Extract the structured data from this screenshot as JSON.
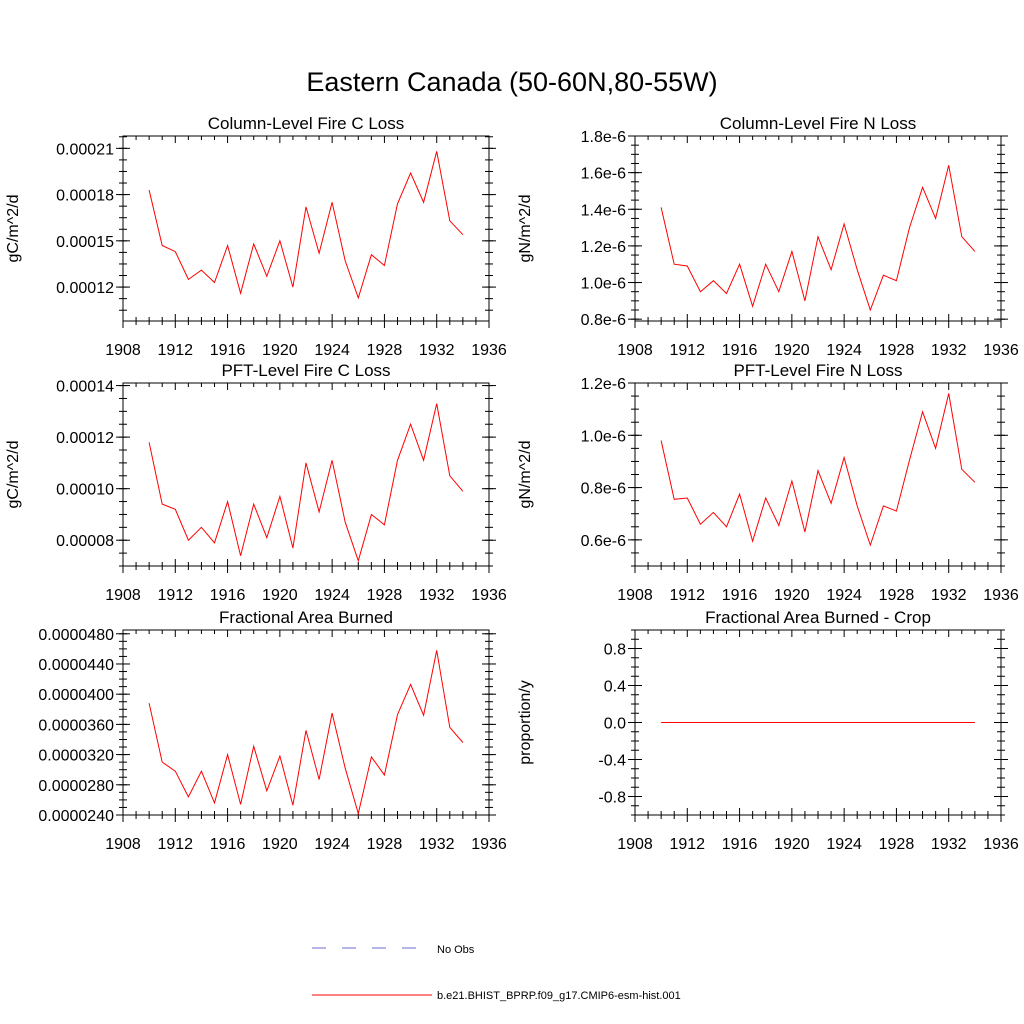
{
  "title": "Eastern Canada (50-60N,80-55W)",
  "legend": {
    "entries": [
      {
        "label": "No Obs",
        "color": "#6b6bd6",
        "style": "dashed"
      },
      {
        "label": "b.e21.BHIST_BPRP.f09_g17.CMIP6-esm-hist.001",
        "color": "#ff0000",
        "style": "solid"
      }
    ]
  },
  "chart_data": [
    {
      "type": "line",
      "title": "Column-Level Fire C Loss",
      "ylabel": "gC/m^2/d",
      "xlim": [
        1908,
        1936
      ],
      "ylim": [
        9.8e-05,
        0.000218
      ],
      "xticks": [
        "1908",
        "1912",
        "1916",
        "1920",
        "1924",
        "1928",
        "1932",
        "1936"
      ],
      "yticks": [
        0.00012,
        0.00015,
        0.00018,
        0.00021
      ],
      "yticklabels": [
        "0.00012",
        "0.00015",
        "0.00018",
        "0.00021"
      ],
      "x": [
        1910,
        1911,
        1912,
        1913,
        1914,
        1915,
        1916,
        1917,
        1918,
        1919,
        1920,
        1921,
        1922,
        1923,
        1924,
        1925,
        1926,
        1927,
        1928,
        1929,
        1930,
        1931,
        1932,
        1933,
        1934
      ],
      "series": [
        {
          "name": "b.e21.BHIST_BPRP.f09_g17.CMIP6-esm-hist.001",
          "color": "#ff0000",
          "values": [
            0.000183,
            0.000147,
            0.000143,
            0.000125,
            0.000131,
            0.000123,
            0.000147,
            0.000116,
            0.000148,
            0.000127,
            0.00015,
            0.00012,
            0.000172,
            0.000142,
            0.000175,
            0.000137,
            0.000113,
            0.000141,
            0.000134,
            0.000174,
            0.000194,
            0.000175,
            0.000208,
            0.000163,
            0.000154
          ]
        }
      ]
    },
    {
      "type": "line",
      "title": "Column-Level Fire N Loss",
      "ylabel": "gN/m^2/d",
      "xlim": [
        1908,
        1936
      ],
      "ylim": [
        7.9e-07,
        1.8e-06
      ],
      "xticks": [
        "1908",
        "1912",
        "1916",
        "1920",
        "1924",
        "1928",
        "1932",
        "1936"
      ],
      "yticks": [
        8e-07,
        1e-06,
        1.2e-06,
        1.4e-06,
        1.6e-06,
        1.8e-06
      ],
      "yticklabels": [
        "0.8e-6",
        "1.0e-6",
        "1.2e-6",
        "1.4e-6",
        "1.6e-6",
        "1.8e-6"
      ],
      "x": [
        1910,
        1911,
        1912,
        1913,
        1914,
        1915,
        1916,
        1917,
        1918,
        1919,
        1920,
        1921,
        1922,
        1923,
        1924,
        1925,
        1926,
        1927,
        1928,
        1929,
        1930,
        1931,
        1932,
        1933,
        1934
      ],
      "series": [
        {
          "name": "b.e21.BHIST_BPRP.f09_g17.CMIP6-esm-hist.001",
          "color": "#ff0000",
          "values": [
            1.41e-06,
            1.1e-06,
            1.09e-06,
            9.5e-07,
            1.01e-06,
            9.4e-07,
            1.1e-06,
            8.7e-07,
            1.1e-06,
            9.5e-07,
            1.17e-06,
            9e-07,
            1.25e-06,
            1.07e-06,
            1.32e-06,
            1.07e-06,
            8.5e-07,
            1.04e-06,
            1.01e-06,
            1.3e-06,
            1.52e-06,
            1.35e-06,
            1.64e-06,
            1.25e-06,
            1.17e-06
          ]
        }
      ]
    },
    {
      "type": "line",
      "title": "PFT-Level Fire C Loss",
      "ylabel": "gC/m^2/d",
      "xlim": [
        1908,
        1936
      ],
      "ylim": [
        7e-05,
        0.000141
      ],
      "xticks": [
        "1908",
        "1912",
        "1916",
        "1920",
        "1924",
        "1928",
        "1932",
        "1936"
      ],
      "yticks": [
        8e-05,
        0.0001,
        0.00012,
        0.00014
      ],
      "yticklabels": [
        "0.00008",
        "0.00010",
        "0.00012",
        "0.00014"
      ],
      "x": [
        1910,
        1911,
        1912,
        1913,
        1914,
        1915,
        1916,
        1917,
        1918,
        1919,
        1920,
        1921,
        1922,
        1923,
        1924,
        1925,
        1926,
        1927,
        1928,
        1929,
        1930,
        1931,
        1932,
        1933,
        1934
      ],
      "series": [
        {
          "name": "b.e21.BHIST_BPRP.f09_g17.CMIP6-esm-hist.001",
          "color": "#ff0000",
          "values": [
            0.000118,
            9.4e-05,
            9.2e-05,
            8e-05,
            8.5e-05,
            7.9e-05,
            9.5e-05,
            7.4e-05,
            9.4e-05,
            8.1e-05,
            9.7e-05,
            7.7e-05,
            0.00011,
            9.1e-05,
            0.000111,
            8.7e-05,
            7.2e-05,
            9e-05,
            8.6e-05,
            0.000111,
            0.000125,
            0.000111,
            0.000133,
            0.000105,
            9.9e-05
          ]
        }
      ]
    },
    {
      "type": "line",
      "title": "PFT-Level Fire N Loss",
      "ylabel": "gN/m^2/d",
      "xlim": [
        1908,
        1936
      ],
      "ylim": [
        5e-07,
        1.2e-06
      ],
      "xticks": [
        "1908",
        "1912",
        "1916",
        "1920",
        "1924",
        "1928",
        "1932",
        "1936"
      ],
      "yticks": [
        6e-07,
        8e-07,
        1e-06,
        1.2e-06
      ],
      "yticklabels": [
        "0.6e-6",
        "0.8e-6",
        "1.0e-6",
        "1.2e-6"
      ],
      "x": [
        1910,
        1911,
        1912,
        1913,
        1914,
        1915,
        1916,
        1917,
        1918,
        1919,
        1920,
        1921,
        1922,
        1923,
        1924,
        1925,
        1926,
        1927,
        1928,
        1929,
        1930,
        1931,
        1932,
        1933,
        1934
      ],
      "series": [
        {
          "name": "b.e21.BHIST_BPRP.f09_g17.CMIP6-esm-hist.001",
          "color": "#ff0000",
          "values": [
            9.8e-07,
            7.55e-07,
            7.6e-07,
            6.6e-07,
            7.05e-07,
            6.5e-07,
            7.75e-07,
            5.95e-07,
            7.6e-07,
            6.55e-07,
            8.25e-07,
            6.3e-07,
            8.65e-07,
            7.4e-07,
            9.15e-07,
            7.3e-07,
            5.8e-07,
            7.3e-07,
            7.1e-07,
            9.05e-07,
            1.09e-06,
            9.5e-07,
            1.16e-06,
            8.7e-07,
            8.2e-07
          ]
        }
      ]
    },
    {
      "type": "line",
      "title": "Fractional Area Burned",
      "ylabel": "",
      "xlim": [
        1908,
        1936
      ],
      "ylim": [
        2.4e-05,
        4.85e-05
      ],
      "xticks": [
        "1908",
        "1912",
        "1916",
        "1920",
        "1924",
        "1928",
        "1932",
        "1936"
      ],
      "yticks": [
        2.4e-05,
        2.8e-05,
        3.2e-05,
        3.6e-05,
        4e-05,
        4.4e-05,
        4.8e-05
      ],
      "yticklabels": [
        "0.0000240",
        "0.0000280",
        "0.0000320",
        "0.0000360",
        "0.0000400",
        "0.0000440",
        "0.0000480"
      ],
      "x": [
        1910,
        1911,
        1912,
        1913,
        1914,
        1915,
        1916,
        1917,
        1918,
        1919,
        1920,
        1921,
        1922,
        1923,
        1924,
        1925,
        1926,
        1927,
        1928,
        1929,
        1930,
        1931,
        1932,
        1933,
        1934
      ],
      "series": [
        {
          "name": "b.e21.BHIST_BPRP.f09_g17.CMIP6-esm-hist.001",
          "color": "#ff0000",
          "values": [
            3.88e-05,
            3.1e-05,
            2.98e-05,
            2.64e-05,
            2.98e-05,
            2.56e-05,
            3.2e-05,
            2.54e-05,
            3.31e-05,
            2.72e-05,
            3.18e-05,
            2.53e-05,
            3.52e-05,
            2.87e-05,
            3.75e-05,
            3.02e-05,
            2.42e-05,
            3.17e-05,
            2.93e-05,
            3.73e-05,
            4.13e-05,
            3.72e-05,
            4.58e-05,
            3.56e-05,
            3.36e-05
          ]
        }
      ]
    },
    {
      "type": "line",
      "title": "Fractional Area Burned - Crop",
      "ylabel": "proportion/y",
      "xlim": [
        1908,
        1936
      ],
      "ylim": [
        -1,
        1
      ],
      "xticks": [
        "1908",
        "1912",
        "1916",
        "1920",
        "1924",
        "1928",
        "1932",
        "1936"
      ],
      "yticks": [
        -0.8,
        -0.4,
        0,
        0.4,
        0.8
      ],
      "yticklabels": [
        "-0.8",
        "-0.4",
        "0.0",
        "0.4",
        "0.8"
      ],
      "x": [
        1910,
        1911,
        1912,
        1913,
        1914,
        1915,
        1916,
        1917,
        1918,
        1919,
        1920,
        1921,
        1922,
        1923,
        1924,
        1925,
        1926,
        1927,
        1928,
        1929,
        1930,
        1931,
        1932,
        1933,
        1934
      ],
      "series": [
        {
          "name": "b.e21.BHIST_BPRP.f09_g17.CMIP6-esm-hist.001",
          "color": "#ff0000",
          "values": [
            0,
            0,
            0,
            0,
            0,
            0,
            0,
            0,
            0,
            0,
            0,
            0,
            0,
            0,
            0,
            0,
            0,
            0,
            0,
            0,
            0,
            0,
            0,
            0,
            0
          ]
        }
      ]
    }
  ]
}
